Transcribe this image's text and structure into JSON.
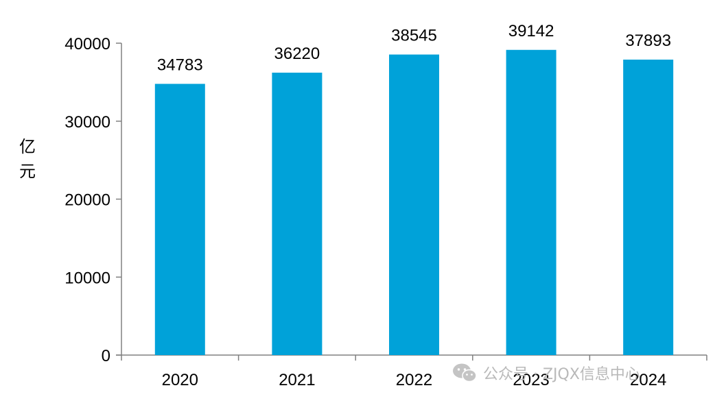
{
  "chart_data": {
    "type": "bar",
    "categories": [
      "2020",
      "2021",
      "2022",
      "2023",
      "2024"
    ],
    "values": [
      34783,
      36220,
      38545,
      39142,
      37893
    ],
    "ylabel": "亿元",
    "ylim": [
      0,
      40000
    ],
    "yticks": [
      0,
      10000,
      20000,
      30000,
      40000
    ],
    "title": "",
    "xlabel": "",
    "grid": false,
    "bar_color": "#00a2d9"
  },
  "watermark": {
    "text": "公众号 · ZJQX信息中心",
    "icon": "wechat-icon"
  }
}
